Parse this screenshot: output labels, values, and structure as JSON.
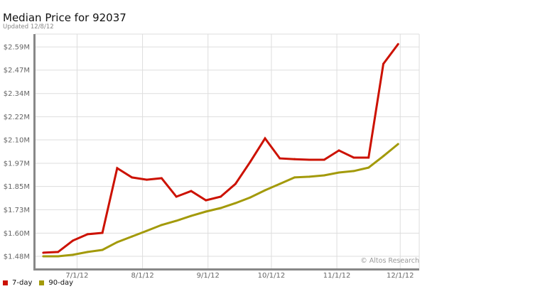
{
  "chart_data": {
    "type": "line",
    "title": "Median Price for 92037",
    "subtitle": "Updated 12/8/12",
    "xlabel": "",
    "ylabel": "",
    "x_type": "date",
    "xlim": [
      "2012-06-11",
      "2012-12-10"
    ],
    "ylim": [
      1.416,
      2.658
    ],
    "y_unit": "$M",
    "grid": true,
    "legend_position": "bottom-left",
    "watermark": "© Altos Research",
    "x_ticks": [
      {
        "date": "2012-07-01",
        "label": "7/1/12"
      },
      {
        "date": "2012-08-01",
        "label": "8/1/12"
      },
      {
        "date": "2012-09-01",
        "label": "9/1/12"
      },
      {
        "date": "2012-10-01",
        "label": "10/1/12"
      },
      {
        "date": "2012-11-01",
        "label": "11/1/12"
      },
      {
        "date": "2012-12-01",
        "label": "12/1/12"
      }
    ],
    "y_ticks": [
      {
        "value": 1.48,
        "label": "$1.48M"
      },
      {
        "value": 1.603,
        "label": "$1.60M"
      },
      {
        "value": 1.727,
        "label": "$1.73M"
      },
      {
        "value": 1.85,
        "label": "$1.85M"
      },
      {
        "value": 1.973,
        "label": "$1.97M"
      },
      {
        "value": 2.097,
        "label": "$2.10M"
      },
      {
        "value": 2.22,
        "label": "$2.22M"
      },
      {
        "value": 2.343,
        "label": "$2.34M"
      },
      {
        "value": 2.467,
        "label": "$2.47M"
      },
      {
        "value": 2.59,
        "label": "$2.59M"
      }
    ],
    "x": [
      "2012-06-15",
      "2012-06-22",
      "2012-06-29",
      "2012-07-06",
      "2012-07-13",
      "2012-07-20",
      "2012-07-27",
      "2012-08-03",
      "2012-08-10",
      "2012-08-17",
      "2012-08-24",
      "2012-08-31",
      "2012-09-07",
      "2012-09-14",
      "2012-09-21",
      "2012-09-28",
      "2012-10-05",
      "2012-10-12",
      "2012-10-19",
      "2012-10-26",
      "2012-11-02",
      "2012-11-09",
      "2012-11-16",
      "2012-11-23",
      "2012-11-30"
    ],
    "series": [
      {
        "name": "7-day",
        "color": "#cc1100",
        "values": [
          1.499,
          1.503,
          1.563,
          1.597,
          1.604,
          1.947,
          1.898,
          1.886,
          1.894,
          1.796,
          1.826,
          1.777,
          1.796,
          1.864,
          1.981,
          2.105,
          1.999,
          1.995,
          1.992,
          1.992,
          2.041,
          2.003,
          2.003,
          2.5,
          2.605
        ]
      },
      {
        "name": "90-day",
        "color": "#a39a0a",
        "values": [
          1.48,
          1.48,
          1.488,
          1.503,
          1.514,
          1.555,
          1.585,
          1.615,
          1.646,
          1.668,
          1.694,
          1.717,
          1.736,
          1.762,
          1.792,
          1.83,
          1.864,
          1.898,
          1.902,
          1.909,
          1.924,
          1.932,
          1.95,
          2.011,
          2.075
        ]
      }
    ]
  }
}
